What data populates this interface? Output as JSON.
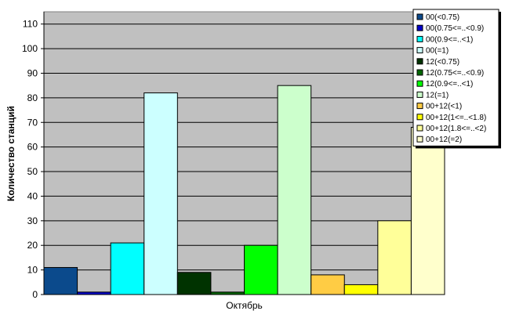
{
  "chart_data": {
    "type": "bar",
    "y_label": "Количество станций",
    "categories": [
      "Октябрь"
    ],
    "ylim": [
      0,
      115
    ],
    "yticks": [
      0,
      10,
      20,
      30,
      40,
      50,
      60,
      70,
      80,
      90,
      100,
      110
    ],
    "grid": true,
    "legend": "top-right",
    "series": [
      {
        "name": "00(<0.75)",
        "color": "#0b4a8c",
        "values": [
          11
        ]
      },
      {
        "name": "00(0.75<=..<0.9)",
        "color": "#0000cc",
        "values": [
          1
        ]
      },
      {
        "name": "00(0.9<=..<1)",
        "color": "#00ffff",
        "values": [
          21
        ]
      },
      {
        "name": "00(=1)",
        "color": "#ccffff",
        "values": [
          82
        ]
      },
      {
        "name": "12(<0.75)",
        "color": "#003300",
        "values": [
          9
        ]
      },
      {
        "name": "12(0.75<=..<0.9)",
        "color": "#006600",
        "values": [
          1
        ]
      },
      {
        "name": "12(0.9<=..<1)",
        "color": "#00ff00",
        "values": [
          20
        ]
      },
      {
        "name": "12(=1)",
        "color": "#ccffcc",
        "values": [
          85
        ]
      },
      {
        "name": "00+12(<1)",
        "color": "#ffcc44",
        "values": [
          8
        ]
      },
      {
        "name": "00+12(1<=..<1.8)",
        "color": "#ffff00",
        "values": [
          4
        ]
      },
      {
        "name": "00+12(1.8<=..<2)",
        "color": "#ffff99",
        "values": [
          30
        ]
      },
      {
        "name": "00+12(=2)",
        "color": "#ffffcc",
        "values": [
          68
        ]
      }
    ]
  }
}
